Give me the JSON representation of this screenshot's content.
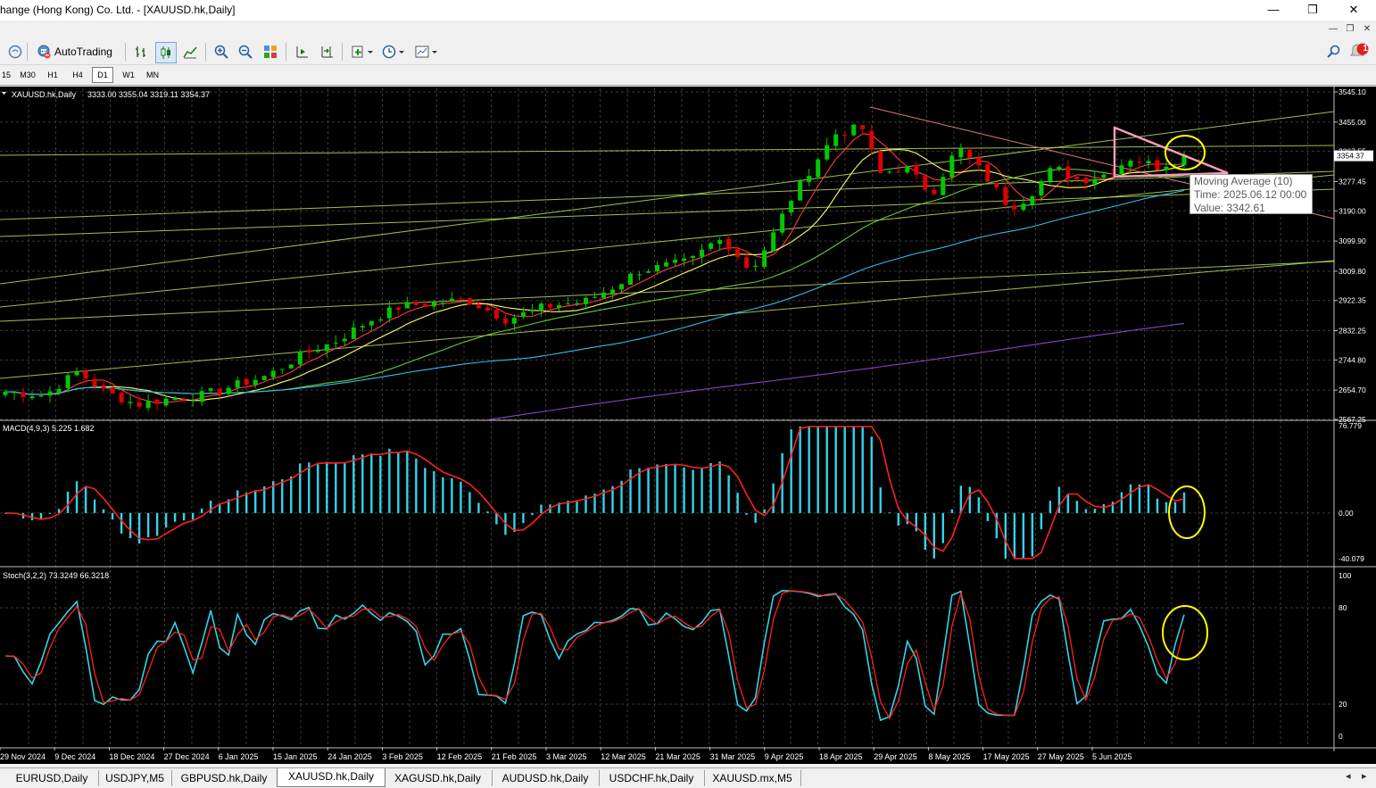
{
  "window": {
    "title": "hange (Hong Kong) Co. Ltd. - [XAUUSD.hk,Daily]",
    "minimize": "—",
    "maximize": "❐",
    "close": "✕",
    "mdi_min": "—",
    "mdi_restore": "❐",
    "mdi_close": "✕"
  },
  "toolbar": {
    "autotrading_label": "AutoTrading",
    "notification_count": "1",
    "icons": [
      "connect-icon",
      "autotrading-icon",
      "bar-chart-icon",
      "candlestick-icon",
      "line-chart-icon",
      "zoom-in-icon",
      "zoom-out-icon",
      "tile-icon",
      "scroll-end-icon",
      "chart-shift-icon",
      "indicators-icon",
      "periods-icon",
      "templates-icon",
      "search-icon",
      "notification-icon"
    ]
  },
  "timeframes": [
    "15",
    "M30",
    "H1",
    "H4",
    "D1",
    "W1",
    "MN"
  ],
  "active_timeframe": "D1",
  "main_chart": {
    "label": "XAUUSD.hk,Daily",
    "ohlc": "3333.00 3355.04 3319.11 3354.37",
    "current_price": "3354.37",
    "price_labels": [
      "3545.10",
      "3455.00",
      "3367.55",
      "3277.45",
      "3190.00",
      "3099.90",
      "3009.80",
      "2922.35",
      "2832.25",
      "2744.80",
      "2654.70",
      "2567.25"
    ],
    "tooltip": {
      "line1": "Moving Average (10)",
      "line2": "Time: 2025.06.12 00:00",
      "line3": "Value: 3342.61"
    },
    "colors": {
      "bull": "#00c800",
      "bear": "#e00000",
      "ma_fast": "#ff3b3b",
      "ma_mid": "#ffff66",
      "ma_green": "#66cc33",
      "ma_cyan": "#33bbee",
      "ma_purple": "#8844cc",
      "trend": "#b8e060",
      "triangle": "#ff9dc0",
      "highlight": "#ffff00"
    }
  },
  "macd": {
    "label": "MACD(4,9,3) 5.225 1.682",
    "scale": [
      "76.779",
      "0.00",
      "-40.079"
    ]
  },
  "stoch": {
    "label": "Stoch(3,2,2) 73.3249 66.3218",
    "scale": [
      "100",
      "80",
      "20",
      "0"
    ]
  },
  "time_axis": [
    "29 Nov 2024",
    "9 Dec 2024",
    "18 Dec 2024",
    "27 Dec 2024",
    "6 Jan 2025",
    "15 Jan 2025",
    "24 Jan 2025",
    "3 Feb 2025",
    "12 Feb 2025",
    "21 Feb 2025",
    "3 Mar 2025",
    "12 Mar 2025",
    "21 Mar 2025",
    "31 Mar 2025",
    "9 Apr 2025",
    "18 Apr 2025",
    "29 Apr 2025",
    "8 May 2025",
    "17 May 2025",
    "27 May 2025",
    "5 Jun 2025"
  ],
  "tabs": [
    "EURUSD,Daily",
    "USDJPY,M5",
    "GBPUSD.hk,Daily",
    "XAUUSD.hk,Daily",
    "XAGUSD.hk,Daily",
    "AUDUSD.hk,Daily",
    "USDCHF.hk,Daily",
    "XAUUSD.mx,M5"
  ],
  "active_tab": "XAUUSD.hk,Daily",
  "tab_scroll_left": "◂",
  "tab_scroll_right": "▸"
}
